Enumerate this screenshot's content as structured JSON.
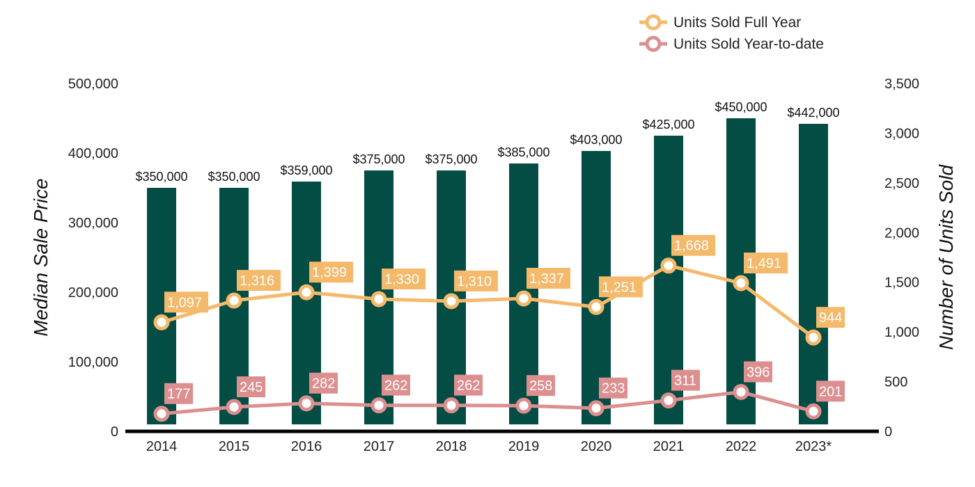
{
  "chart_data": {
    "type": "bar",
    "categories": [
      "2014",
      "2015",
      "2016",
      "2017",
      "2018",
      "2019",
      "2020",
      "2021",
      "2022",
      "2023*"
    ],
    "bar_series": {
      "values": [
        350000,
        350000,
        359000,
        375000,
        375000,
        385000,
        403000,
        425000,
        450000,
        442000
      ],
      "labels": [
        "$350,000",
        "$350,000",
        "$359,000",
        "$375,000",
        "$375,000",
        "$385,000",
        "$403,000",
        "$425,000",
        "$450,000",
        "$442,000"
      ],
      "color": "#034d44"
    },
    "line_series": [
      {
        "name": "Units Sold Full Year",
        "values": [
          1097,
          1316,
          1399,
          1330,
          1310,
          1337,
          1251,
          1668,
          1491,
          944
        ],
        "labels": [
          "1,097",
          "1,316",
          "1,399",
          "1,330",
          "1,310",
          "1,337",
          "1,251",
          "1,668",
          "1,491",
          "944"
        ],
        "color": "#f5b96c"
      },
      {
        "name": "Units Sold Year-to-date",
        "values": [
          177,
          245,
          282,
          262,
          262,
          258,
          233,
          311,
          396,
          201
        ],
        "labels": [
          "177",
          "245",
          "282",
          "262",
          "262",
          "258",
          "233",
          "311",
          "396",
          "201"
        ],
        "color": "#dd8f8f"
      }
    ],
    "ylabel_left": "Median Sale Price",
    "ylabel_right": "Number of Units Sold",
    "ylim_left": [
      0,
      500000
    ],
    "ylim_right": [
      0,
      3500
    ],
    "left_ticks": [
      "0",
      "100,000",
      "200,000",
      "300,000",
      "400,000",
      "500,000"
    ],
    "right_ticks": [
      "0",
      "500",
      "1,000",
      "1,500",
      "2,000",
      "2,500",
      "3,000",
      "3,500"
    ],
    "grid": false,
    "legend_position": "top-right"
  }
}
